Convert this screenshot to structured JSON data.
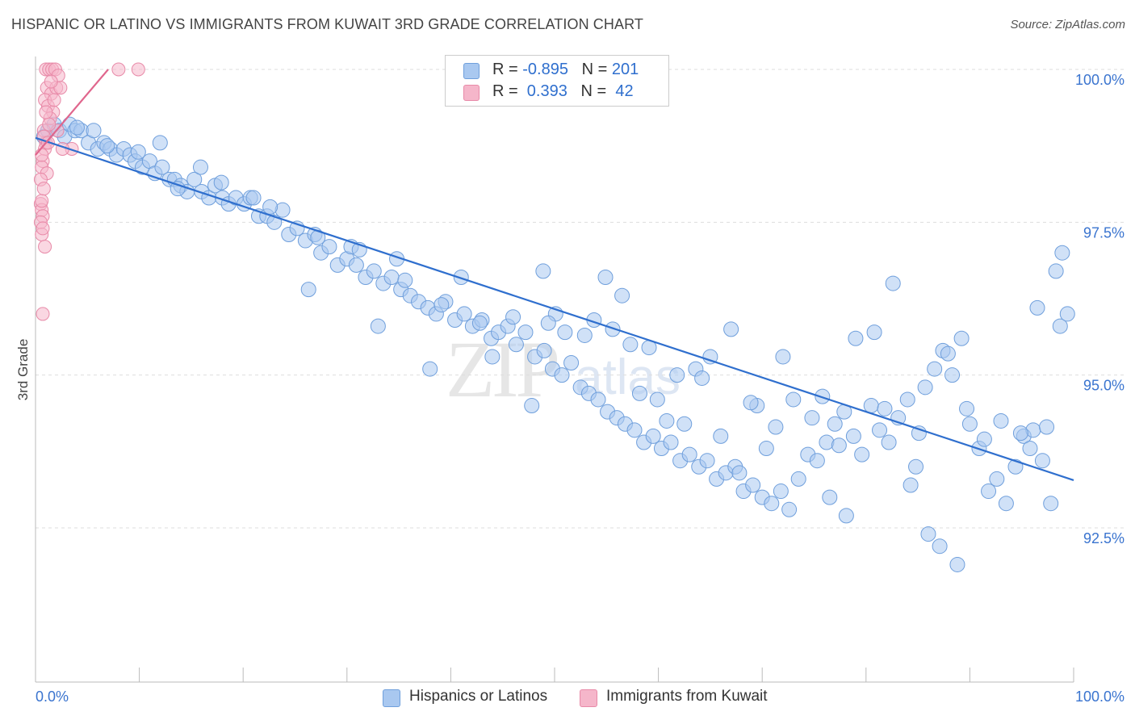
{
  "title": "HISPANIC OR LATINO VS IMMIGRANTS FROM KUWAIT 3RD GRADE CORRELATION CHART",
  "source": "Source: ZipAtlas.com",
  "watermark": {
    "zip": "ZIP",
    "atlas": "atlas"
  },
  "legend": {
    "rows": [
      {
        "r_label": "R = ",
        "r_value": "-0.895",
        "n_label": "N = ",
        "n_value": "201"
      },
      {
        "r_label": "R = ",
        "r_value": " 0.393",
        "n_label": "N = ",
        "n_value": " 42"
      }
    ]
  },
  "colors": {
    "blue_fill": "#a9c8f0",
    "blue_stroke": "#6f9fdc",
    "blue_line": "#2f6fce",
    "pink_fill": "#f5b6ca",
    "pink_stroke": "#e88aa8",
    "pink_line": "#e0668d",
    "tick_label": "#3a74cf"
  },
  "chart_data": {
    "type": "scatter",
    "title": "HISPANIC OR LATINO VS IMMIGRANTS FROM KUWAIT 3RD GRADE CORRELATION CHART",
    "xlabel": "",
    "ylabel": "3rd Grade",
    "xlim": [
      0,
      100
    ],
    "ylim": [
      90.0,
      100.25
    ],
    "y_ticks": [
      92.5,
      95.0,
      97.5,
      100.0
    ],
    "y_tick_labels": [
      "92.5%",
      "95.0%",
      "97.5%",
      "100.0%"
    ],
    "x_tick_labels": [
      "0.0%",
      "100.0%"
    ],
    "grid": "horizontal dashed",
    "legend_position": "top-center",
    "series": [
      {
        "name": "Hispanics or Latinos",
        "color": "#a9c8f0",
        "trend": {
          "x": [
            0,
            100
          ],
          "y": [
            98.88,
            93.28
          ]
        },
        "points": [
          [
            0.8,
            98.9
          ],
          [
            1.2,
            99.0
          ],
          [
            1.8,
            99.1
          ],
          [
            2.3,
            99.0
          ],
          [
            2.8,
            98.9
          ],
          [
            3.3,
            99.1
          ],
          [
            3.8,
            99.0
          ],
          [
            4.4,
            99.0
          ],
          [
            5.1,
            98.8
          ],
          [
            5.6,
            99.0
          ],
          [
            6.0,
            98.7
          ],
          [
            6.6,
            98.8
          ],
          [
            7.2,
            98.7
          ],
          [
            7.8,
            98.6
          ],
          [
            8.5,
            98.7
          ],
          [
            9.1,
            98.6
          ],
          [
            9.6,
            98.5
          ],
          [
            10.3,
            98.4
          ],
          [
            11.0,
            98.5
          ],
          [
            11.5,
            98.3
          ],
          [
            12.2,
            98.4
          ],
          [
            12.9,
            98.2
          ],
          [
            13.4,
            98.2
          ],
          [
            14.0,
            98.1
          ],
          [
            14.6,
            98.0
          ],
          [
            15.3,
            98.2
          ],
          [
            16.0,
            98.0
          ],
          [
            16.7,
            97.9
          ],
          [
            17.3,
            98.1
          ],
          [
            18.0,
            97.9
          ],
          [
            18.6,
            97.8
          ],
          [
            19.3,
            97.9
          ],
          [
            20.1,
            97.8
          ],
          [
            20.7,
            97.9
          ],
          [
            21.5,
            97.6
          ],
          [
            22.3,
            97.6
          ],
          [
            23.0,
            97.5
          ],
          [
            23.8,
            97.7
          ],
          [
            24.4,
            97.3
          ],
          [
            25.2,
            97.4
          ],
          [
            26.0,
            97.2
          ],
          [
            26.9,
            97.3
          ],
          [
            27.5,
            97.0
          ],
          [
            28.3,
            97.1
          ],
          [
            29.1,
            96.8
          ],
          [
            30.0,
            96.9
          ],
          [
            30.9,
            96.8
          ],
          [
            31.8,
            96.6
          ],
          [
            32.6,
            96.7
          ],
          [
            33.5,
            96.5
          ],
          [
            34.3,
            96.6
          ],
          [
            35.2,
            96.4
          ],
          [
            36.1,
            96.3
          ],
          [
            36.9,
            96.2
          ],
          [
            37.8,
            96.1
          ],
          [
            38.6,
            96.0
          ],
          [
            39.5,
            96.2
          ],
          [
            40.4,
            95.9
          ],
          [
            41.3,
            96.0
          ],
          [
            42.1,
            95.8
          ],
          [
            43.0,
            95.9
          ],
          [
            43.9,
            95.6
          ],
          [
            44.6,
            95.7
          ],
          [
            45.5,
            95.8
          ],
          [
            46.3,
            95.5
          ],
          [
            47.2,
            95.7
          ],
          [
            48.1,
            95.3
          ],
          [
            49.0,
            95.4
          ],
          [
            49.8,
            95.1
          ],
          [
            50.7,
            95.0
          ],
          [
            51.6,
            95.2
          ],
          [
            52.5,
            94.8
          ],
          [
            53.3,
            94.7
          ],
          [
            54.2,
            94.6
          ],
          [
            55.1,
            94.4
          ],
          [
            56.0,
            94.3
          ],
          [
            56.8,
            94.2
          ],
          [
            57.7,
            94.1
          ],
          [
            58.6,
            93.9
          ],
          [
            59.5,
            94.0
          ],
          [
            60.3,
            93.8
          ],
          [
            61.2,
            93.9
          ],
          [
            62.1,
            93.6
          ],
          [
            63.0,
            93.7
          ],
          [
            63.9,
            93.5
          ],
          [
            64.7,
            93.6
          ],
          [
            65.6,
            93.3
          ],
          [
            66.5,
            93.4
          ],
          [
            67.4,
            93.5
          ],
          [
            68.2,
            93.1
          ],
          [
            69.1,
            93.2
          ],
          [
            70.0,
            93.0
          ],
          [
            70.9,
            92.9
          ],
          [
            71.8,
            93.1
          ],
          [
            72.6,
            92.8
          ],
          [
            73.5,
            93.3
          ],
          [
            74.4,
            93.7
          ],
          [
            75.3,
            93.6
          ],
          [
            76.2,
            93.9
          ],
          [
            77.0,
            94.2
          ],
          [
            77.9,
            94.4
          ],
          [
            78.8,
            94.0
          ],
          [
            79.6,
            93.7
          ],
          [
            80.5,
            94.5
          ],
          [
            81.3,
            94.1
          ],
          [
            82.2,
            93.9
          ],
          [
            83.1,
            94.3
          ],
          [
            84.0,
            94.6
          ],
          [
            84.8,
            93.5
          ],
          [
            85.7,
            94.8
          ],
          [
            86.6,
            95.1
          ],
          [
            87.4,
            95.4
          ],
          [
            88.3,
            95.0
          ],
          [
            89.2,
            95.6
          ],
          [
            90.0,
            94.2
          ],
          [
            90.9,
            93.8
          ],
          [
            91.8,
            93.1
          ],
          [
            92.6,
            93.3
          ],
          [
            93.5,
            92.9
          ],
          [
            94.4,
            93.5
          ],
          [
            95.2,
            94.0
          ],
          [
            96.1,
            94.1
          ],
          [
            97.0,
            93.6
          ],
          [
            97.8,
            92.9
          ],
          [
            98.7,
            95.8
          ],
          [
            99.4,
            96.0
          ],
          [
            98.3,
            96.7
          ],
          [
            98.9,
            97.0
          ],
          [
            96.5,
            96.1
          ],
          [
            95.8,
            93.8
          ],
          [
            12.0,
            98.8
          ],
          [
            15.9,
            98.4
          ],
          [
            21.0,
            97.9
          ],
          [
            26.3,
            96.4
          ],
          [
            30.4,
            97.1
          ],
          [
            33.0,
            95.8
          ],
          [
            34.8,
            96.9
          ],
          [
            38.0,
            95.1
          ],
          [
            41.0,
            96.6
          ],
          [
            44.0,
            95.3
          ],
          [
            47.8,
            94.5
          ],
          [
            48.9,
            96.7
          ],
          [
            50.1,
            96.0
          ],
          [
            51.0,
            95.7
          ],
          [
            53.8,
            95.9
          ],
          [
            54.9,
            96.6
          ],
          [
            56.5,
            96.3
          ],
          [
            57.3,
            95.5
          ],
          [
            58.2,
            94.7
          ],
          [
            59.9,
            94.6
          ],
          [
            61.8,
            95.0
          ],
          [
            62.5,
            94.2
          ],
          [
            63.6,
            95.1
          ],
          [
            65.0,
            95.3
          ],
          [
            66.0,
            94.0
          ],
          [
            67.8,
            93.4
          ],
          [
            69.5,
            94.5
          ],
          [
            70.4,
            93.8
          ],
          [
            72.0,
            95.3
          ],
          [
            73.0,
            94.6
          ],
          [
            74.8,
            94.3
          ],
          [
            76.5,
            93.0
          ],
          [
            78.1,
            92.7
          ],
          [
            79.0,
            95.6
          ],
          [
            80.8,
            95.7
          ],
          [
            82.6,
            96.5
          ],
          [
            84.3,
            93.2
          ],
          [
            86.0,
            92.4
          ],
          [
            87.1,
            92.2
          ],
          [
            88.8,
            91.9
          ],
          [
            4.0,
            99.05
          ],
          [
            6.9,
            98.75
          ],
          [
            9.9,
            98.65
          ],
          [
            13.7,
            98.05
          ],
          [
            17.9,
            98.15
          ],
          [
            22.6,
            97.75
          ],
          [
            27.2,
            97.25
          ],
          [
            31.2,
            97.05
          ],
          [
            35.6,
            96.55
          ],
          [
            39.1,
            96.15
          ],
          [
            42.8,
            95.85
          ],
          [
            46.0,
            95.95
          ],
          [
            49.4,
            95.85
          ],
          [
            52.9,
            95.65
          ],
          [
            55.6,
            95.75
          ],
          [
            59.1,
            95.45
          ],
          [
            60.8,
            94.25
          ],
          [
            64.2,
            94.95
          ],
          [
            67.0,
            95.75
          ],
          [
            68.9,
            94.55
          ],
          [
            71.3,
            94.15
          ],
          [
            75.8,
            94.65
          ],
          [
            77.4,
            93.85
          ],
          [
            81.8,
            94.45
          ],
          [
            85.1,
            94.05
          ],
          [
            87.9,
            95.35
          ],
          [
            89.7,
            94.45
          ],
          [
            91.4,
            93.95
          ],
          [
            93.0,
            94.25
          ],
          [
            94.9,
            94.05
          ],
          [
            97.4,
            94.15
          ]
        ]
      },
      {
        "name": "Immigrants from Kuwait",
        "color": "#f5b6ca",
        "trend": {
          "x": [
            0,
            7.0
          ],
          "y": [
            98.6,
            100.0
          ]
        },
        "points": [
          [
            1.0,
            100.0
          ],
          [
            1.3,
            100.0
          ],
          [
            1.6,
            100.0
          ],
          [
            1.9,
            100.0
          ],
          [
            2.2,
            99.9
          ],
          [
            1.1,
            99.7
          ],
          [
            1.5,
            99.6
          ],
          [
            2.0,
            99.7
          ],
          [
            2.4,
            99.7
          ],
          [
            0.9,
            99.5
          ],
          [
            1.2,
            99.4
          ],
          [
            1.7,
            99.3
          ],
          [
            1.4,
            99.2
          ],
          [
            2.1,
            99.0
          ],
          [
            0.8,
            99.0
          ],
          [
            1.0,
            98.8
          ],
          [
            0.9,
            98.7
          ],
          [
            0.7,
            98.5
          ],
          [
            0.6,
            98.4
          ],
          [
            1.1,
            98.3
          ],
          [
            0.5,
            97.8
          ],
          [
            0.6,
            97.7
          ],
          [
            0.7,
            97.6
          ],
          [
            0.5,
            97.5
          ],
          [
            0.6,
            97.3
          ],
          [
            0.9,
            97.1
          ],
          [
            0.7,
            96.0
          ],
          [
            3.5,
            98.7
          ],
          [
            8.0,
            100.0
          ],
          [
            9.9,
            100.0
          ],
          [
            1.3,
            99.1
          ],
          [
            1.8,
            99.5
          ],
          [
            0.8,
            98.9
          ],
          [
            0.6,
            98.6
          ],
          [
            1.2,
            98.8
          ],
          [
            2.6,
            98.7
          ],
          [
            0.7,
            97.4
          ],
          [
            0.6,
            97.85
          ],
          [
            1.5,
            99.8
          ],
          [
            1.0,
            99.3
          ],
          [
            0.5,
            98.2
          ],
          [
            0.8,
            98.05
          ]
        ]
      }
    ]
  },
  "bottom_legend": [
    {
      "label": "Hispanics or Latinos"
    },
    {
      "label": "Immigrants from Kuwait"
    }
  ]
}
